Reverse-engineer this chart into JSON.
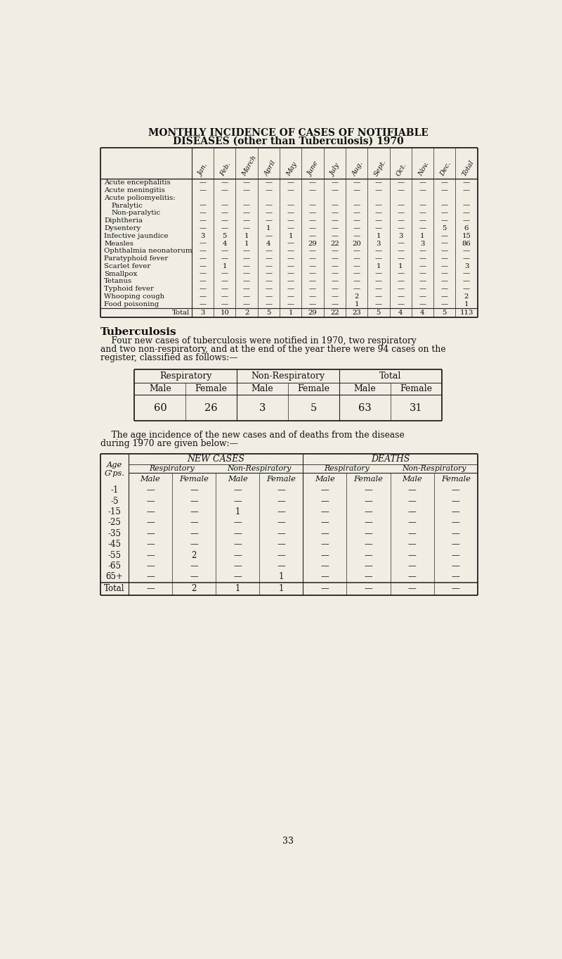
{
  "bg_color": "#f2ede3",
  "title_line1": "MONTHLY INCIDENCE OF CASES OF NOTIFIABLE",
  "title_line2": "DISEASES (other than Tuberculosis) 1970",
  "table1_months": [
    "Jan.",
    "Feb.",
    "March",
    "April",
    "May",
    "June",
    "July",
    "Aug.",
    "Sept.",
    "Oct.",
    "Nov.",
    "Dec.",
    "Total"
  ],
  "table1_diseases": [
    "Acute encephalitis",
    "Acute meningitis",
    "Acute poliomyelitis:",
    "  Paralytic",
    "  Non-paralytic",
    "Diphtheria",
    "Dysentery",
    "Infective jaundice",
    "Measles",
    "Ophthalmia neonatorum",
    "Paratyphoid fever",
    "Scarlet fever",
    "Smallpox",
    "Tetanus",
    "Typhoid fever",
    "Whooping cough",
    "Food poisoning"
  ],
  "table1_data": {
    "Acute encephalitis": [
      "—",
      "—",
      "—",
      "—",
      "—",
      "—",
      "—",
      "—",
      "—",
      "—",
      "—",
      "—",
      "—"
    ],
    "Acute meningitis": [
      "—",
      "—",
      "—",
      "—",
      "—",
      "—",
      "—",
      "—",
      "—",
      "—",
      "—",
      "—",
      "—"
    ],
    "Acute poliomyelitis:": [
      "",
      "",
      "",
      "",
      "",
      "",
      "",
      "",
      "",
      "",
      "",
      "",
      ""
    ],
    "  Paralytic": [
      "—",
      "—",
      "—",
      "—",
      "—",
      "—",
      "—",
      "—",
      "—",
      "—",
      "—",
      "—",
      "—"
    ],
    "  Non-paralytic": [
      "—",
      "—",
      "—",
      "—",
      "—",
      "—",
      "—",
      "—",
      "—",
      "—",
      "—",
      "—",
      "—"
    ],
    "Diphtheria": [
      "—",
      "—",
      "—",
      "—",
      "—",
      "—",
      "—",
      "—",
      "—",
      "—",
      "—",
      "—",
      "—"
    ],
    "Dysentery": [
      "—",
      "—",
      "—",
      "1",
      "—",
      "—",
      "—",
      "—",
      "—",
      "—",
      "—",
      "5",
      "6"
    ],
    "Infective jaundice": [
      "3",
      "5",
      "1",
      "—",
      "1",
      "—",
      "—",
      "—",
      "1",
      "3",
      "1",
      "—",
      "15"
    ],
    "Measles": [
      "—",
      "4",
      "1",
      "4",
      "—",
      "29",
      "22",
      "20",
      "3",
      "—",
      "3",
      "—",
      "86"
    ],
    "Ophthalmia neonatorum": [
      "—",
      "—",
      "—",
      "—",
      "—",
      "—",
      "—",
      "—",
      "—",
      "—",
      "—",
      "—",
      "—"
    ],
    "Paratyphoid fever": [
      "—",
      "—",
      "—",
      "—",
      "—",
      "—",
      "—",
      "—",
      "—",
      "—",
      "—",
      "—",
      "—"
    ],
    "Scarlet fever": [
      "—",
      "1",
      "—",
      "—",
      "—",
      "—",
      "—",
      "—",
      "1",
      "1",
      "—",
      "—",
      "3"
    ],
    "Smallpox": [
      "—",
      "—",
      "—",
      "—",
      "—",
      "—",
      "—",
      "—",
      "—",
      "—",
      "—",
      "—",
      "—"
    ],
    "Tetanus": [
      "—",
      "—",
      "—",
      "—",
      "—",
      "—",
      "—",
      "—",
      "—",
      "—",
      "—",
      "—",
      "—"
    ],
    "Typhoid fever": [
      "—",
      "—",
      "—",
      "—",
      "—",
      "—",
      "—",
      "—",
      "—",
      "—",
      "—",
      "—",
      "—"
    ],
    "Whooping cough": [
      "—",
      "—",
      "—",
      "—",
      "—",
      "—",
      "—",
      "2",
      "—",
      "—",
      "—",
      "—",
      "2"
    ],
    "Food poisoning": [
      "—",
      "—",
      "—",
      "—",
      "—",
      "—",
      "—",
      "1",
      "—",
      "—",
      "—",
      "—",
      "1"
    ]
  },
  "table1_totals": [
    "3",
    "10",
    "2",
    "5",
    "1",
    "29",
    "22",
    "23",
    "5",
    "4",
    "4",
    "5",
    "113"
  ],
  "tb_section_title": "Tuberculosis",
  "tb_paragraph1_lines": [
    "    Four new cases of tuberculosis were notified in 1970, two respiratory",
    "and two non-respiratory, and at the end of the year there were 94 cases on the",
    "register, classified as follows:—"
  ],
  "tb_table2_headers1": [
    "Respiratory",
    "Non-Respiratory",
    "Total"
  ],
  "tb_table2_headers2": [
    "Male",
    "Female",
    "Male",
    "Female",
    "Male",
    "Female"
  ],
  "tb_table2_values": [
    "60",
    "26",
    "3",
    "5",
    "63",
    "31"
  ],
  "tb_paragraph2_lines": [
    "    The age incidence of the new cases and of deaths from the disease",
    "during 1970 are given below:—"
  ],
  "tb_table3_ages": [
    "-1",
    "-5",
    "-15",
    "-25",
    "-35",
    "-45",
    "-55",
    "-65",
    "65+"
  ],
  "tb_table3_cols": [
    "Male",
    "Female",
    "Male",
    "Female",
    "Male",
    "Female",
    "Male",
    "Female"
  ],
  "tb_table3_data": [
    [
      "—",
      "—",
      "—",
      "—",
      "—",
      "—",
      "—",
      "—"
    ],
    [
      "—",
      "—",
      "—",
      "—",
      "—",
      "—",
      "—",
      "—"
    ],
    [
      "—",
      "—",
      "1",
      "—",
      "—",
      "—",
      "—",
      "—"
    ],
    [
      "—",
      "—",
      "—",
      "—",
      "—",
      "—",
      "—",
      "—"
    ],
    [
      "—",
      "—",
      "—",
      "—",
      "—",
      "—",
      "—",
      "—"
    ],
    [
      "—",
      "—",
      "—",
      "—",
      "—",
      "—",
      "—",
      "—"
    ],
    [
      "—",
      "2",
      "—",
      "—",
      "—",
      "—",
      "—",
      "—"
    ],
    [
      "—",
      "—",
      "—",
      "—",
      "—",
      "—",
      "—",
      "—"
    ],
    [
      "—",
      "—",
      "—",
      "1",
      "—",
      "—",
      "—",
      "—"
    ]
  ],
  "tb_table3_totals": [
    "—",
    "2",
    "1",
    "1",
    "—",
    "—",
    "—",
    "—"
  ],
  "page_number": "33"
}
